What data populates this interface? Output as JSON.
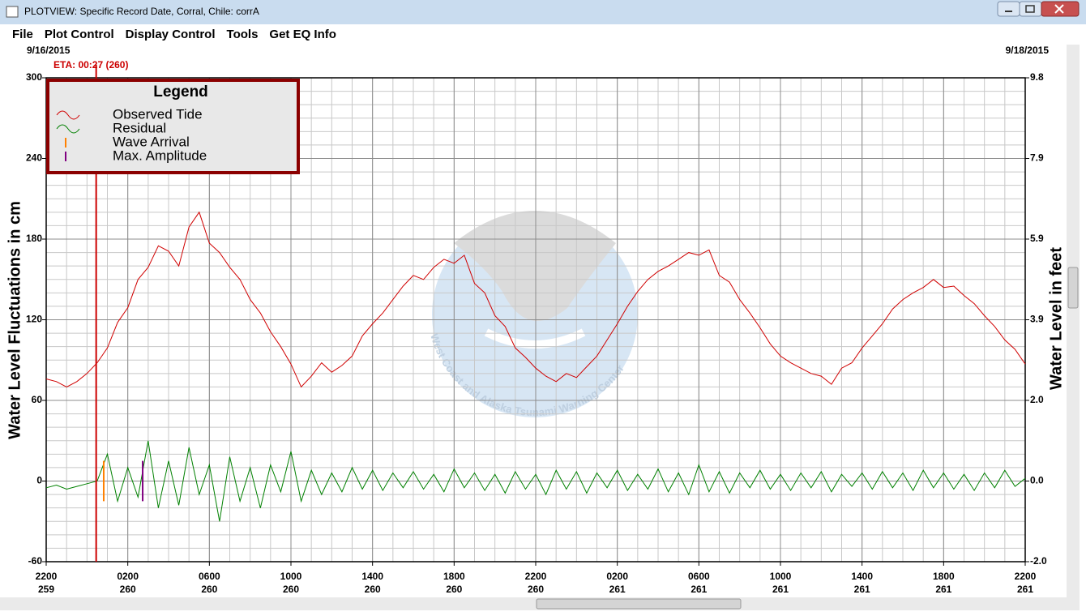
{
  "window": {
    "title": "PLOTVIEW: Specific Record Date, Corral, Chile: corrA",
    "menu": [
      "File",
      "Plot Control",
      "Display Control",
      "Tools",
      "Get EQ Info"
    ]
  },
  "chart_data": {
    "type": "line",
    "start_date": "9/16/2015",
    "end_date": "9/18/2015",
    "ylabel": "Water Level Fluctuations in cm",
    "y2label": "Water Level in feet",
    "watermark": "West Coast and Alaska Tsunami Warning Center",
    "legend_title": "Legend",
    "xlim": [
      0,
      48
    ],
    "xticks": [
      {
        "value": 0,
        "label": "2200",
        "day": "259"
      },
      {
        "value": 4,
        "label": "0200",
        "day": "260"
      },
      {
        "value": 8,
        "label": "0600",
        "day": "260"
      },
      {
        "value": 12,
        "label": "1000",
        "day": "260"
      },
      {
        "value": 16,
        "label": "1400",
        "day": "260"
      },
      {
        "value": 20,
        "label": "1800",
        "day": "260"
      },
      {
        "value": 24,
        "label": "2200",
        "day": "260"
      },
      {
        "value": 28,
        "label": "0200",
        "day": "261"
      },
      {
        "value": 32,
        "label": "0600",
        "day": "261"
      },
      {
        "value": 36,
        "label": "1000",
        "day": "261"
      },
      {
        "value": 40,
        "label": "1400",
        "day": "261"
      },
      {
        "value": 44,
        "label": "1800",
        "day": "261"
      },
      {
        "value": 48,
        "label": "2200",
        "day": "261"
      }
    ],
    "ylim": [
      -60,
      300
    ],
    "yticks": [
      -60,
      0,
      60,
      120,
      180,
      240,
      300
    ],
    "y2lim": [
      -1.969,
      9.843
    ],
    "y2ticks": [
      {
        "value": -1.969,
        "label": "-2.0"
      },
      {
        "value": 0,
        "label": "0.0"
      },
      {
        "value": 1.969,
        "label": "2.0"
      },
      {
        "value": 3.937,
        "label": "3.9"
      },
      {
        "value": 5.906,
        "label": "5.9"
      },
      {
        "value": 7.874,
        "label": "7.9"
      },
      {
        "value": 9.843,
        "label": "9.8"
      }
    ],
    "grid": true,
    "minor_grid": {
      "x": 1,
      "y": 10
    },
    "series": [
      {
        "name": "Observed Tide",
        "color": "#d00000",
        "x": [
          0,
          0.5,
          1,
          1.5,
          2,
          2.5,
          3,
          3.5,
          4,
          4.5,
          5,
          5.5,
          6,
          6.5,
          7,
          7.5,
          8,
          8.5,
          9,
          9.5,
          10,
          10.5,
          11,
          11.5,
          12,
          12.5,
          13,
          13.5,
          14,
          14.5,
          15,
          15.5,
          16,
          16.5,
          17,
          17.5,
          18,
          18.5,
          19,
          19.5,
          20,
          20.5,
          21,
          21.5,
          22,
          22.5,
          23,
          23.5,
          24,
          24.5,
          25,
          25.5,
          26,
          26.5,
          27,
          27.5,
          28,
          28.5,
          29,
          29.5,
          30,
          30.5,
          31,
          31.5,
          32,
          32.5,
          33,
          33.5,
          34,
          34.5,
          35,
          35.5,
          36,
          36.5,
          37,
          37.5,
          38,
          38.5,
          39,
          39.5,
          40,
          40.5,
          41,
          41.5,
          42,
          42.5,
          43,
          43.5,
          44,
          44.5,
          45,
          45.5,
          46,
          46.5,
          47,
          47.5,
          48
        ],
        "values": [
          76,
          74,
          70,
          74,
          80,
          88,
          99,
          118,
          129,
          150,
          159,
          175,
          171,
          160,
          189,
          200,
          177,
          170,
          159,
          150,
          135,
          125,
          111,
          100,
          87,
          70,
          78,
          88,
          81,
          86,
          93,
          108,
          117,
          125,
          135,
          145,
          153,
          150,
          159,
          165,
          162,
          168,
          147,
          140,
          123,
          115,
          99,
          92,
          84,
          78,
          74,
          80,
          77,
          85,
          93,
          105,
          117,
          130,
          141,
          150,
          156,
          160,
          165,
          170,
          168,
          172,
          153,
          148,
          135,
          125,
          114,
          102,
          93,
          88,
          84,
          80,
          78,
          72,
          84,
          88,
          99,
          108,
          117,
          128,
          135,
          140,
          144,
          150,
          144,
          145,
          138,
          132,
          123,
          115,
          105,
          98,
          87
        ]
      },
      {
        "name": "Residual",
        "color": "#008000",
        "x": [
          0,
          0.5,
          1,
          1.5,
          2,
          2.5,
          3,
          3.5,
          4,
          4.5,
          5,
          5.5,
          6,
          6.5,
          7,
          7.5,
          8,
          8.5,
          9,
          9.5,
          10,
          10.5,
          11,
          11.5,
          12,
          12.5,
          13,
          13.5,
          14,
          14.5,
          15,
          15.5,
          16,
          16.5,
          17,
          17.5,
          18,
          18.5,
          19,
          19.5,
          20,
          20.5,
          21,
          21.5,
          22,
          22.5,
          23,
          23.5,
          24,
          24.5,
          25,
          25.5,
          26,
          26.5,
          27,
          27.5,
          28,
          28.5,
          29,
          29.5,
          30,
          30.5,
          31,
          31.5,
          32,
          32.5,
          33,
          33.5,
          34,
          34.5,
          35,
          35.5,
          36,
          36.5,
          37,
          37.5,
          38,
          38.5,
          39,
          39.5,
          40,
          40.5,
          41,
          41.5,
          42,
          42.5,
          43,
          43.5,
          44,
          44.5,
          45,
          45.5,
          46,
          46.5,
          47,
          47.5,
          48
        ],
        "values": [
          -5,
          -3,
          -6,
          -4,
          -2,
          0,
          20,
          -15,
          10,
          -12,
          30,
          -20,
          15,
          -18,
          25,
          -10,
          12,
          -30,
          18,
          -15,
          10,
          -20,
          12,
          -8,
          22,
          -15,
          8,
          -10,
          6,
          -8,
          10,
          -6,
          8,
          -7,
          6,
          -5,
          7,
          -6,
          5,
          -8,
          9,
          -5,
          6,
          -7,
          5,
          -9,
          7,
          -6,
          5,
          -10,
          8,
          -6,
          7,
          -9,
          6,
          -5,
          8,
          -7,
          5,
          -6,
          9,
          -8,
          6,
          -10,
          12,
          -8,
          7,
          -9,
          6,
          -5,
          8,
          -6,
          5,
          -7,
          6,
          -5,
          7,
          -8,
          5,
          -4,
          6,
          -6,
          7,
          -5,
          6,
          -7,
          8,
          -5,
          6,
          -6,
          5,
          -7,
          6,
          -5,
          8,
          -4,
          2
        ]
      }
    ],
    "markers": [
      {
        "name": "Wave Arrival",
        "color": "#ff8000",
        "x": 2.82,
        "range": [
          -15,
          15
        ]
      },
      {
        "name": "Max. Amplitude",
        "color": "#800080",
        "x": 4.73,
        "range": [
          -15,
          15
        ]
      }
    ],
    "annotation": {
      "text": "ETA: 00:27 (260)",
      "x": 2.45,
      "color": "#cc0000"
    }
  }
}
